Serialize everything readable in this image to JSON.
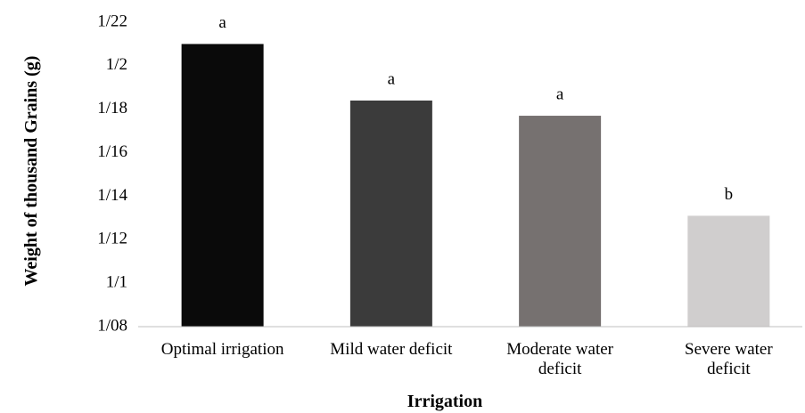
{
  "chart_data": {
    "type": "bar",
    "x_label": "Irrigation",
    "y_label": "Weight of thousand Grains (g)",
    "categories": [
      "Optimal irrigation",
      "Mild water deficit",
      "Moderate water deficit",
      "Severe water deficit"
    ],
    "values": [
      1.21,
      1.184,
      1.177,
      1.131
    ],
    "annotations": [
      "a",
      "a",
      "a",
      "b"
    ],
    "colors": [
      "#0a0a0a",
      "#3b3b3b",
      "#767170",
      "#d0cece"
    ],
    "ylim": [
      1.08,
      1.22
    ],
    "yticks": [
      {
        "value": 1.08,
        "label": "1/08"
      },
      {
        "value": 1.1,
        "label": "1/1"
      },
      {
        "value": 1.12,
        "label": "1/12"
      },
      {
        "value": 1.14,
        "label": "1/14"
      },
      {
        "value": 1.16,
        "label": "1/16"
      },
      {
        "value": 1.18,
        "label": "1/18"
      },
      {
        "value": 1.2,
        "label": "1/2"
      },
      {
        "value": 1.22,
        "label": "1/22"
      }
    ],
    "grid": false
  }
}
